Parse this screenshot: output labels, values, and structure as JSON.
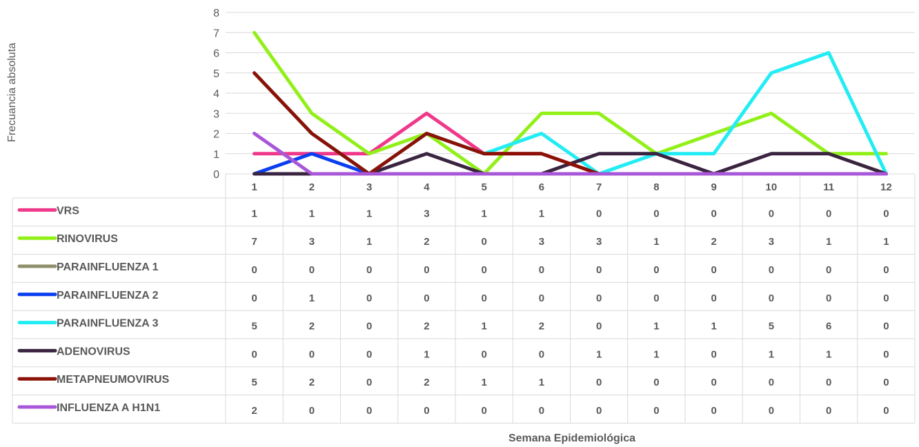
{
  "chart_data": {
    "type": "line",
    "title": "",
    "xlabel": "Semana Epidemiológica",
    "ylabel": "Frecuancia absoluta",
    "ylim": [
      0,
      8
    ],
    "yticks": [
      0,
      1,
      2,
      3,
      4,
      5,
      6,
      7,
      8
    ],
    "grid": true,
    "categories": [
      "1",
      "2",
      "3",
      "4",
      "5",
      "6",
      "7",
      "8",
      "9",
      "10",
      "11",
      "12"
    ],
    "series": [
      {
        "name": "VRS",
        "color": "#f0388a",
        "values": [
          1,
          1,
          1,
          3,
          1,
          1,
          0,
          0,
          0,
          0,
          0,
          0
        ]
      },
      {
        "name": "RINOVIRUS",
        "color": "#92f019",
        "values": [
          7,
          3,
          1,
          2,
          0,
          3,
          3,
          1,
          2,
          3,
          1,
          1
        ]
      },
      {
        "name": "PARAINFLUENZA 1",
        "color": "#8f8f6b",
        "values": [
          0,
          0,
          0,
          0,
          0,
          0,
          0,
          0,
          0,
          0,
          0,
          0
        ]
      },
      {
        "name": "PARAINFLUENZA 2",
        "color": "#0a3ef0",
        "values": [
          0,
          1,
          0,
          0,
          0,
          0,
          0,
          0,
          0,
          0,
          0,
          0
        ]
      },
      {
        "name": "PARAINFLUENZA 3",
        "color": "#22ecf4",
        "values": [
          5,
          2,
          0,
          2,
          1,
          2,
          0,
          1,
          1,
          5,
          6,
          0
        ]
      },
      {
        "name": "ADENOVIRUS",
        "color": "#3a2440",
        "values": [
          0,
          0,
          0,
          1,
          0,
          0,
          1,
          1,
          0,
          1,
          1,
          0
        ]
      },
      {
        "name": "METAPNEUMOVIRUS",
        "color": "#8b1106",
        "values": [
          5,
          2,
          0,
          2,
          1,
          1,
          0,
          0,
          0,
          0,
          0,
          0
        ]
      },
      {
        "name": "INFLUENZA A H1N1",
        "color": "#a857d8",
        "values": [
          2,
          0,
          0,
          0,
          0,
          0,
          0,
          0,
          0,
          0,
          0,
          0
        ]
      }
    ]
  }
}
